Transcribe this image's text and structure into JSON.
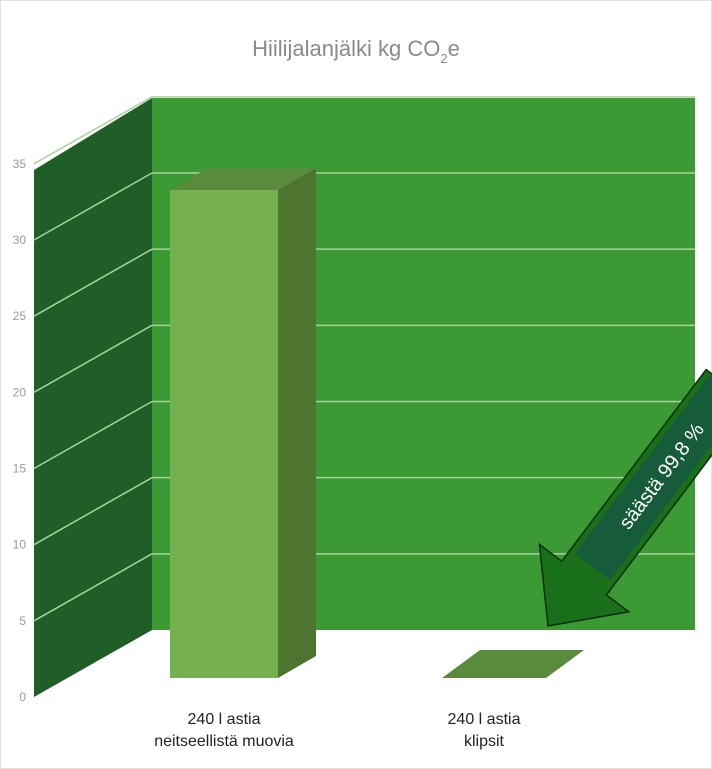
{
  "chart_data": {
    "type": "bar",
    "title_main": "Hiilijalanjälki kg CO",
    "title_sub": "2",
    "title_suffix": "e",
    "categories": [
      [
        "240 l astia",
        "neitseellistä muovia"
      ],
      [
        "240 l astia",
        "klipsit"
      ]
    ],
    "values": [
      33,
      0.07
    ],
    "yticks": [
      "0",
      "5",
      "10",
      "15",
      "20",
      "25",
      "30",
      "35"
    ],
    "ylim": [
      0,
      35
    ],
    "grid": true,
    "annotation": "säästä 99,8 %",
    "colors": {
      "back_wall": "#3c9a35",
      "side_wall": "#1f5e27",
      "grid": "#a7d49a",
      "bar_front": "#75b04e",
      "bar_top": "#5a8a3c",
      "bar_side": "#4d7530",
      "arrow": "#1a6f1a",
      "arrow_label_bg": "#175c3a"
    }
  }
}
